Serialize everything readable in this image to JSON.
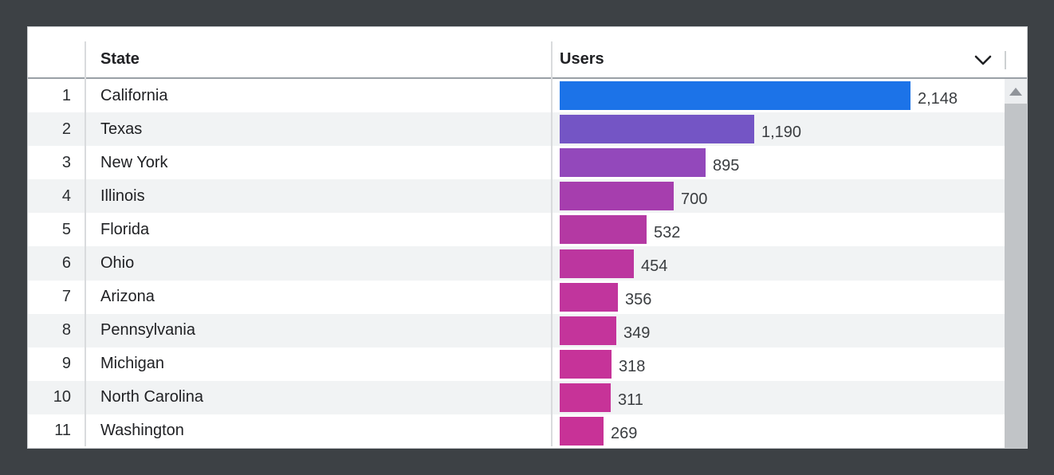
{
  "page": {
    "background_color": "#3d4145"
  },
  "table": {
    "columns": {
      "index": "",
      "state": "State",
      "users": "Users"
    },
    "rows": [
      {
        "rank": 1,
        "state": "California",
        "users": 2148,
        "users_label": "2,148",
        "bar_color": "#1c73e8"
      },
      {
        "rank": 2,
        "state": "Texas",
        "users": 1190,
        "users_label": "1,190",
        "bar_color": "#7455c5"
      },
      {
        "rank": 3,
        "state": "New York",
        "users": 895,
        "users_label": "895",
        "bar_color": "#9348bb"
      },
      {
        "rank": 4,
        "state": "Illinois",
        "users": 700,
        "users_label": "700",
        "bar_color": "#a63eae"
      },
      {
        "rank": 5,
        "state": "Florida",
        "users": 532,
        "users_label": "532",
        "bar_color": "#b439a3"
      },
      {
        "rank": 6,
        "state": "Ohio",
        "users": 454,
        "users_label": "454",
        "bar_color": "#bc369f"
      },
      {
        "rank": 7,
        "state": "Arizona",
        "users": 356,
        "users_label": "356",
        "bar_color": "#c1359d"
      },
      {
        "rank": 8,
        "state": "Pennsylvania",
        "users": 349,
        "users_label": "349",
        "bar_color": "#c4349b"
      },
      {
        "rank": 9,
        "state": "Michigan",
        "users": 318,
        "users_label": "318",
        "bar_color": "#c63399"
      },
      {
        "rank": 10,
        "state": "North Carolina",
        "users": 311,
        "users_label": "311",
        "bar_color": "#c73398"
      },
      {
        "rank": 11,
        "state": "Washington",
        "users": 269,
        "users_label": "269",
        "bar_color": "#c83297"
      }
    ]
  },
  "icons": {
    "users_sort": "chevron-down-icon",
    "scrollbar_up": "triangle-up-icon"
  },
  "colors": {
    "bar_max_blue": "#1c73e8",
    "bar_min_magenta": "#c83297",
    "row_alt_background": "#f1f3f4",
    "header_border": "#9aa0a6",
    "scrollbar_thumb": "#c1c4c7"
  },
  "chart_data": {
    "type": "bar",
    "orientation": "horizontal",
    "series_name": "Users",
    "categories": [
      "California",
      "Texas",
      "New York",
      "Illinois",
      "Florida",
      "Ohio",
      "Arizona",
      "Pennsylvania",
      "Michigan",
      "North Carolina",
      "Washington"
    ],
    "values": [
      2148,
      1190,
      895,
      700,
      532,
      454,
      356,
      349,
      318,
      311,
      269
    ],
    "value_labels": [
      "2,148",
      "1,190",
      "895",
      "700",
      "532",
      "454",
      "356",
      "349",
      "318",
      "311",
      "269"
    ],
    "xlim": [
      0,
      2148
    ],
    "grid": false,
    "legend": false,
    "bar_colors": [
      "#1c73e8",
      "#7455c5",
      "#9348bb",
      "#a63eae",
      "#b439a3",
      "#bc369f",
      "#c1359d",
      "#c4349b",
      "#c63399",
      "#c73398",
      "#c83297"
    ]
  }
}
